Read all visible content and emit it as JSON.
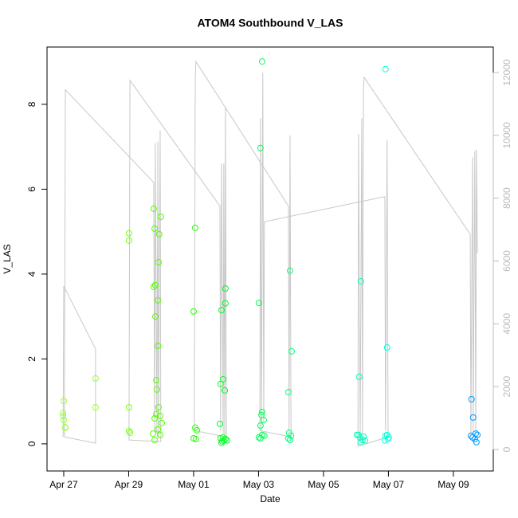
{
  "chart_data": {
    "type": "scatter",
    "title": "ATOM4 Southbound V_LAS",
    "x_label": "Date",
    "y_label": "V_LAS",
    "xlim": [
      -0.515,
      13.23
    ],
    "ylim": [
      -0.64,
      9.35
    ],
    "y2lim": [
      -685,
      12812
    ],
    "xticks": [
      {
        "value": 0,
        "label": "Apr 27"
      },
      {
        "value": 2,
        "label": "Apr 29"
      },
      {
        "value": 4,
        "label": "May 01"
      },
      {
        "value": 6,
        "label": "May 03"
      },
      {
        "value": 8,
        "label": "May 05"
      },
      {
        "value": 10,
        "label": "May 07"
      },
      {
        "value": 12,
        "label": "May 09"
      }
    ],
    "yticks": [
      0,
      2,
      4,
      6,
      8
    ],
    "y2ticks": [
      0,
      2000,
      4000,
      6000,
      8000,
      10000,
      12000
    ],
    "y2_tick_color": "#bbbbbb",
    "series": [
      {
        "color": "#99FF33",
        "x": [
          -0.02,
          0,
          -0.02,
          0,
          0.05,
          0.05,
          0.98,
          0.98
        ],
        "values": [
          0.73,
          1.01,
          0.66,
          0.56,
          0.39,
          0.38,
          1.54,
          0.86
        ]
      },
      {
        "color": "#77FF11",
        "x": [
          2.01,
          2.01,
          2.01,
          2.01,
          2.04
        ],
        "values": [
          4.96,
          4.79,
          0.86,
          0.3,
          0.26
        ]
      },
      {
        "color": "#55FF00",
        "x": [
          2.75,
          2.77,
          2.8,
          2.8,
          2.82,
          2.82,
          2.85,
          2.85,
          2.87,
          2.8,
          2.77,
          2.9,
          2.9,
          2.9,
          2.92,
          2.92,
          2.94,
          2.97,
          2.97,
          2.99,
          3.02
        ],
        "values": [
          0.24,
          3.7,
          0.6,
          0.09,
          3.74,
          3.0,
          1.5,
          0.7,
          1.28,
          5.07,
          5.54,
          3.38,
          2.31,
          0.34,
          4.28,
          0.86,
          4.94,
          0.66,
          0.21,
          5.35,
          0.49
        ]
      },
      {
        "color": "#22FF00",
        "x": [
          4.05,
          4.0,
          4.05,
          4.1,
          4.0,
          4.07
        ],
        "values": [
          5.09,
          3.12,
          0.38,
          0.32,
          0.13,
          0.11
        ]
      },
      {
        "color": "#00FF22",
        "x": [
          4.98,
          4.98,
          4.86,
          4.91,
          4.83,
          4.96,
          4.81,
          4.83,
          4.88,
          4.93,
          4.98,
          4.86,
          5.03,
          4.91
        ],
        "values": [
          3.66,
          3.31,
          3.15,
          1.52,
          1.41,
          1.26,
          0.47,
          0.13,
          0.06,
          0.08,
          0.11,
          0.02,
          0.08,
          0.15
        ]
      },
      {
        "color": "#00FF55",
        "x": [
          6.11,
          6.06,
          6.01,
          6.11,
          6.09,
          6.16,
          6.06,
          6.11,
          6.01,
          6.18,
          6.06
        ],
        "values": [
          9.01,
          6.97,
          3.32,
          0.75,
          0.68,
          0.56,
          0.43,
          0.21,
          0.15,
          0.19,
          0.13
        ]
      },
      {
        "color": "#00FF77",
        "x": [
          6.97,
          7.02,
          6.92,
          6.94,
          7.0,
          6.92,
          6.97
        ],
        "values": [
          4.08,
          2.18,
          1.22,
          0.26,
          0.19,
          0.13,
          0.09
        ]
      },
      {
        "color": "#00FFBB",
        "x": [
          9.15,
          9.1,
          9.08,
          9.13,
          9.2,
          9.15,
          9.28,
          9.23,
          9.03
        ],
        "values": [
          3.83,
          1.58,
          0.21,
          0.15,
          0.09,
          0.04,
          0.08,
          0.17,
          0.21
        ]
      },
      {
        "color": "#00FFDD",
        "x": [
          9.91,
          9.96,
          9.91,
          9.99,
          10.01,
          9.89,
          9.96
        ],
        "values": [
          8.83,
          2.27,
          0.19,
          0.11,
          0.15,
          0.08,
          0.21
        ]
      },
      {
        "color": "#0099FF",
        "x": [
          12.56,
          12.61,
          12.69,
          12.54,
          12.59,
          12.66,
          12.71,
          12.74
        ],
        "values": [
          1.05,
          0.62,
          0.24,
          0.19,
          0.15,
          0.11,
          0.04,
          0.21
        ]
      },
      {
        "type": "line",
        "axis": "y2",
        "color": "#c8c8c8",
        "x": [
          -0.02,
          0,
          0.98,
          0.98,
          0.02,
          0.05,
          2.77,
          2.8,
          2.82,
          2.87,
          2.9,
          2.92,
          2.97,
          2.99,
          2.01,
          2.04,
          4.81,
          4.83,
          4.86,
          4.91,
          4.93,
          4.96,
          4.98,
          5.01,
          4.02,
          4.05,
          4.07,
          6.92,
          6.94,
          6.97,
          7.0,
          6.04,
          6.06,
          6.09,
          6.13,
          6.16,
          6.18,
          9.89,
          9.91,
          9.96,
          9.99,
          9.06,
          9.08,
          9.13,
          9.18,
          9.2,
          9.23,
          9.25,
          12.52,
          12.54,
          12.59,
          12.61,
          12.66,
          12.69,
          12.71,
          12.74
        ],
        "values": [
          400,
          5200,
          3200,
          200,
          400,
          11450,
          8500,
          600,
          9750,
          500,
          9800,
          350,
          10150,
          250,
          300,
          11750,
          7750,
          600,
          9100,
          500,
          9100,
          350,
          10900,
          400,
          600,
          11800,
          12350,
          7750,
          500,
          10000,
          400,
          600,
          10550,
          500,
          12000,
          850,
          7250,
          8050,
          600,
          9850,
          400,
          100,
          10050,
          350,
          10550,
          500,
          11400,
          11850,
          6850,
          400,
          9300,
          400,
          9500,
          400,
          9550,
          6250
        ]
      }
    ]
  }
}
